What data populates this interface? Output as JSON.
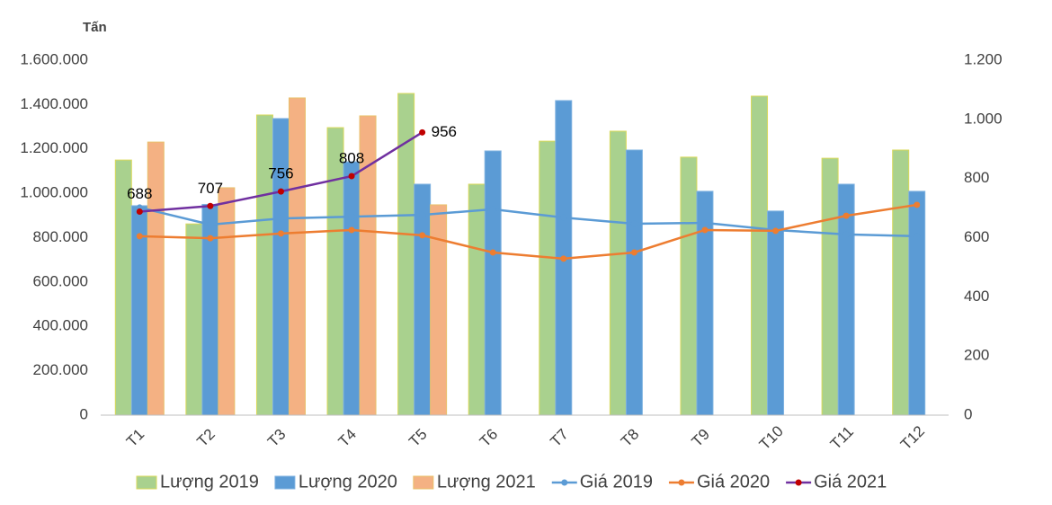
{
  "chart_data": {
    "type": "combo",
    "y_label": "Tấn",
    "categories": [
      "T1",
      "T2",
      "T3",
      "T4",
      "T5",
      "T6",
      "T7",
      "T8",
      "T9",
      "T10",
      "T11",
      "T12"
    ],
    "ylim": [
      0,
      1600000
    ],
    "yticks": [
      0,
      {
        "value": 200000,
        "label": "200.000"
      },
      {
        "value": 400000,
        "label": "400.000"
      },
      {
        "value": 600000,
        "label": "600.000"
      },
      {
        "value": 800000,
        "label": "800.000"
      },
      {
        "value": 1000000,
        "label": "1.000.000"
      },
      {
        "value": 1200000,
        "label": "1.200.000"
      },
      {
        "value": 1400000,
        "label": "1.400.000"
      },
      {
        "value": 1600000,
        "label": "1.600.000"
      }
    ],
    "y2lim": [
      0,
      1200
    ],
    "y2ticks": [
      0,
      200,
      400,
      600,
      800,
      {
        "value": 1000,
        "label": "1.000"
      },
      {
        "value": 1200,
        "label": "1.200"
      }
    ],
    "series": [
      {
        "name": "Lượng 2019",
        "type": "bar",
        "color": "#a9d18e",
        "stroke": "#d9d95a",
        "values": [
          1150000,
          862000,
          1353000,
          1296000,
          1450000,
          1041000,
          1235000,
          1280000,
          1163000,
          1438000,
          1158000,
          1195000
        ]
      },
      {
        "name": "Lượng 2020",
        "type": "bar",
        "color": "#5b9bd5",
        "stroke": "#7fb2e0",
        "values": [
          944000,
          950000,
          1337000,
          1142000,
          1041000,
          1191000,
          1418000,
          1195000,
          1009000,
          920000,
          1041000,
          1009000
        ]
      },
      {
        "name": "Lượng 2021",
        "type": "bar",
        "color": "#f4b183",
        "stroke": "#e8c06a",
        "values": [
          1231000,
          1025000,
          1430000,
          1349000,
          948000,
          null,
          null,
          null,
          null,
          null,
          null,
          null
        ]
      },
      {
        "name": "Giá 2019",
        "type": "line",
        "axis": "y2",
        "color": "#5b9bd5",
        "marker_color": "#5b9bd5",
        "values": [
          702,
          644,
          665,
          671,
          677,
          696,
          668,
          647,
          650,
          626,
          611,
          605
        ]
      },
      {
        "name": "Giá 2020",
        "type": "line",
        "axis": "y2",
        "color": "#ed7d31",
        "marker_color": "#ed7d31",
        "values": [
          605,
          598,
          614,
          626,
          608,
          550,
          529,
          550,
          626,
          623,
          674,
          711
        ]
      },
      {
        "name": "Giá 2021",
        "type": "line",
        "axis": "y2",
        "color": "#7030a0",
        "marker_color": "#c00000",
        "values": [
          688,
          707,
          756,
          808,
          956,
          null,
          null,
          null,
          null,
          null,
          null,
          null
        ],
        "show_values": true
      }
    ]
  }
}
